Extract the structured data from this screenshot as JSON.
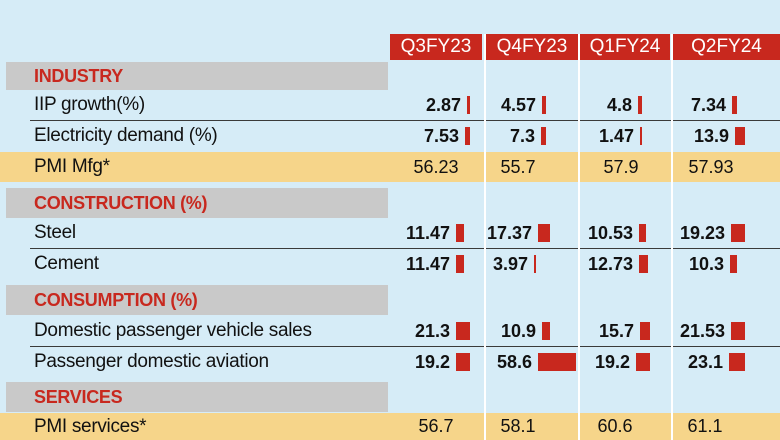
{
  "columns": [
    "Q3FY23",
    "Q4FY23",
    "Q1FY24",
    "Q2FY24"
  ],
  "sections": {
    "industry": "INDUSTRY",
    "construction": "CONSTRUCTION (%)",
    "consumption": "CONSUMPTION (%)",
    "services": "SERVICES"
  },
  "rows": {
    "iip": {
      "label": "IIP growth(%)",
      "values": [
        "2.87",
        "4.57",
        "4.8",
        "7.34"
      ]
    },
    "electricity": {
      "label": "Electricity demand (%)",
      "values": [
        "7.53",
        "7.3",
        "1.47",
        "13.9"
      ]
    },
    "pmi_mfg": {
      "label": "PMI Mfg*",
      "values": [
        "56.23",
        "55.7",
        "57.9",
        "57.93"
      ]
    },
    "steel": {
      "label": "Steel",
      "values": [
        "11.47",
        "17.37",
        "10.53",
        "19.23"
      ]
    },
    "cement": {
      "label": "Cement",
      "values": [
        "11.47",
        "3.97",
        "12.73",
        "10.3"
      ]
    },
    "pv_sales": {
      "label": "Domestic passenger vehicle sales",
      "values": [
        "21.3",
        "10.9",
        "15.7",
        "21.53"
      ]
    },
    "aviation": {
      "label": "Passenger domestic aviation",
      "values": [
        "19.2",
        "58.6",
        "19.2",
        "23.1"
      ]
    },
    "pmi_services": {
      "label": "PMI services*",
      "values": [
        "56.7",
        "58.1",
        "60.6",
        "61.1"
      ]
    }
  },
  "colors": {
    "accent": "#c8281e",
    "highlight": "#f6d58a",
    "background": "#d6ecf7",
    "section_bg": "#c9c9c9"
  }
}
